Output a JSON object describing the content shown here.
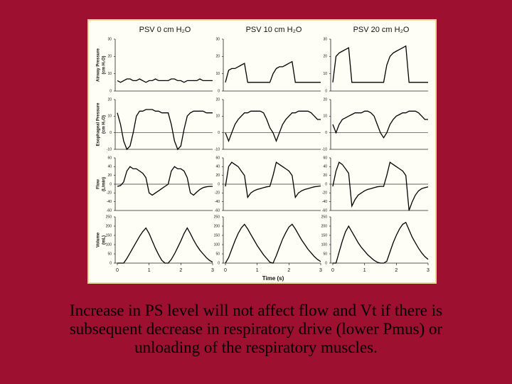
{
  "figure": {
    "column_titles": [
      "PSV 0 cm H₂O",
      "PSV 10 cm H₂O",
      "PSV 20 cm H₂O"
    ],
    "x_label": "Time (s)"
  },
  "caption": [
    "Increase in PS level will not affect flow and Vt if there is",
    "subsequent decrease in respiratory drive (lower Pmus) or",
    "unloading of the respiratory muscles."
  ],
  "chart_data": [
    {
      "type": "line",
      "ylabel": [
        "Airway Pressure",
        "(cm H₂O)"
      ],
      "xlim": [
        0,
        3
      ],
      "ylim": [
        0,
        30
      ],
      "yticks": [
        0,
        10,
        20,
        30
      ],
      "zero_line": false,
      "x": [
        0,
        0.1,
        0.2,
        0.3,
        0.4,
        0.5,
        0.6,
        0.7,
        0.8,
        0.9,
        1,
        1.1,
        1.2,
        1.3,
        1.4,
        1.5,
        1.6,
        1.7,
        1.8,
        1.9,
        2,
        2.1,
        2.2,
        2.3,
        2.4,
        2.5,
        2.6,
        2.7,
        2.8,
        2.9,
        3
      ],
      "values": [
        6,
        5,
        6,
        7,
        7,
        6,
        6,
        7,
        6,
        5,
        6,
        6,
        7,
        6,
        6,
        6,
        6,
        7,
        7,
        6,
        6,
        5,
        6,
        6,
        6,
        6,
        7,
        6,
        6,
        6,
        6
      ]
    },
    {
      "type": "line",
      "xlim": [
        0,
        3
      ],
      "ylim": [
        0,
        30
      ],
      "yticks": [
        0,
        10,
        20,
        30
      ],
      "zero_line": false,
      "x": [
        0,
        0.1,
        0.2,
        0.3,
        0.4,
        0.5,
        0.6,
        0.7,
        0.8,
        0.9,
        1,
        1.1,
        1.2,
        1.3,
        1.4,
        1.5,
        1.6,
        1.7,
        1.8,
        1.9,
        2,
        2.1,
        2.2,
        2.3,
        2.4,
        2.5,
        2.6,
        2.7,
        2.8,
        2.9,
        3
      ],
      "values": [
        5,
        12,
        13,
        13,
        14,
        15,
        16,
        5,
        5,
        5,
        5,
        5,
        5,
        5,
        5,
        10,
        13,
        14,
        14,
        15,
        16,
        17,
        5,
        5,
        5,
        5,
        5,
        5,
        5,
        5,
        5
      ]
    },
    {
      "type": "line",
      "xlim": [
        0,
        3
      ],
      "ylim": [
        0,
        30
      ],
      "yticks": [
        0,
        10,
        20,
        30
      ],
      "zero_line": false,
      "x": [
        0,
        0.1,
        0.2,
        0.3,
        0.4,
        0.5,
        0.6,
        0.7,
        0.8,
        0.9,
        1,
        1.1,
        1.2,
        1.3,
        1.4,
        1.5,
        1.6,
        1.7,
        1.8,
        1.9,
        2,
        2.1,
        2.2,
        2.3,
        2.4,
        2.5,
        2.6,
        2.7,
        2.8,
        2.9,
        3
      ],
      "values": [
        5,
        20,
        22,
        23,
        24,
        25,
        5,
        5,
        5,
        5,
        5,
        5,
        5,
        5,
        5,
        5,
        5,
        15,
        20,
        22,
        23,
        24,
        25,
        26,
        5,
        5,
        5,
        5,
        5,
        5,
        5
      ]
    },
    {
      "type": "line",
      "ylabel": [
        "Esophageal Pressure",
        "(cm H₂O)"
      ],
      "xlim": [
        0,
        3
      ],
      "ylim": [
        -10,
        20
      ],
      "yticks": [
        -10,
        0,
        10,
        20
      ],
      "zero_line": true,
      "x": [
        0,
        0.1,
        0.2,
        0.3,
        0.4,
        0.5,
        0.6,
        0.7,
        0.8,
        0.9,
        1,
        1.1,
        1.2,
        1.3,
        1.4,
        1.5,
        1.6,
        1.7,
        1.8,
        1.9,
        2,
        2.1,
        2.2,
        2.3,
        2.4,
        2.5,
        2.6,
        2.7,
        2.8,
        2.9,
        3
      ],
      "values": [
        12,
        5,
        -5,
        -10,
        -8,
        0,
        10,
        13,
        13,
        14,
        14,
        14,
        13,
        13,
        12,
        12,
        12,
        5,
        -5,
        -10,
        -8,
        2,
        10,
        12,
        13,
        13,
        13,
        13,
        12,
        12,
        12
      ]
    },
    {
      "type": "line",
      "xlim": [
        0,
        3
      ],
      "ylim": [
        -10,
        20
      ],
      "yticks": [
        -10,
        0,
        10,
        20
      ],
      "zero_line": true,
      "x": [
        0,
        0.1,
        0.2,
        0.3,
        0.4,
        0.5,
        0.6,
        0.7,
        0.8,
        0.9,
        1,
        1.1,
        1.2,
        1.3,
        1.4,
        1.5,
        1.6,
        1.7,
        1.8,
        1.9,
        2,
        2.1,
        2.2,
        2.3,
        2.4,
        2.5,
        2.6,
        2.7,
        2.8,
        2.9,
        3
      ],
      "values": [
        0,
        -5,
        0,
        5,
        8,
        10,
        12,
        12,
        13,
        13,
        13,
        13,
        12,
        8,
        3,
        0,
        -5,
        0,
        5,
        8,
        10,
        12,
        12,
        13,
        13,
        13,
        13,
        12,
        10,
        8,
        8
      ]
    },
    {
      "type": "line",
      "xlim": [
        0,
        3
      ],
      "ylim": [
        -10,
        20
      ],
      "yticks": [
        -10,
        0,
        10,
        20
      ],
      "zero_line": true,
      "x": [
        0,
        0.1,
        0.2,
        0.3,
        0.4,
        0.5,
        0.6,
        0.7,
        0.8,
        0.9,
        1,
        1.1,
        1.2,
        1.3,
        1.4,
        1.5,
        1.6,
        1.7,
        1.8,
        1.9,
        2,
        2.1,
        2.2,
        2.3,
        2.4,
        2.5,
        2.6,
        2.7,
        2.8,
        2.9,
        3
      ],
      "values": [
        5,
        0,
        5,
        8,
        9,
        10,
        11,
        12,
        12,
        12,
        13,
        13,
        12,
        10,
        5,
        0,
        -3,
        0,
        5,
        8,
        10,
        11,
        12,
        12,
        13,
        13,
        13,
        12,
        10,
        8,
        8
      ]
    },
    {
      "type": "line",
      "ylabel": [
        "Flow",
        "(L/min)"
      ],
      "xlim": [
        0,
        3
      ],
      "ylim": [
        -60,
        60
      ],
      "yticks": [
        -60,
        -40,
        -20,
        0,
        20,
        40,
        60
      ],
      "zero_line": true,
      "x": [
        0,
        0.1,
        0.2,
        0.3,
        0.4,
        0.5,
        0.6,
        0.7,
        0.8,
        0.9,
        1,
        1.1,
        1.2,
        1.3,
        1.4,
        1.5,
        1.6,
        1.7,
        1.8,
        1.9,
        2,
        2.1,
        2.2,
        2.3,
        2.4,
        2.5,
        2.6,
        2.7,
        2.8,
        2.9,
        3
      ],
      "values": [
        -5,
        -3,
        5,
        30,
        40,
        35,
        35,
        30,
        25,
        15,
        -20,
        -25,
        -20,
        -15,
        -10,
        -5,
        0,
        30,
        40,
        35,
        35,
        30,
        15,
        -20,
        -25,
        -18,
        -12,
        -8,
        -6,
        -5,
        -5
      ]
    },
    {
      "type": "line",
      "xlim": [
        0,
        3
      ],
      "ylim": [
        -60,
        60
      ],
      "yticks": [
        -60,
        -40,
        -20,
        0,
        20,
        40,
        60
      ],
      "zero_line": true,
      "x": [
        0,
        0.1,
        0.2,
        0.3,
        0.4,
        0.5,
        0.6,
        0.7,
        0.8,
        0.9,
        1,
        1.1,
        1.2,
        1.3,
        1.4,
        1.5,
        1.6,
        1.7,
        1.8,
        1.9,
        2,
        2.1,
        2.2,
        2.3,
        2.4,
        2.5,
        2.6,
        2.7,
        2.8,
        2.9,
        3
      ],
      "values": [
        -5,
        40,
        50,
        45,
        40,
        30,
        20,
        -30,
        -20,
        -15,
        -12,
        -10,
        -8,
        -6,
        -5,
        20,
        50,
        45,
        40,
        35,
        30,
        20,
        -30,
        -20,
        -15,
        -12,
        -10,
        -8,
        -6,
        -5,
        -4
      ]
    },
    {
      "type": "line",
      "xlim": [
        0,
        3
      ],
      "ylim": [
        -60,
        60
      ],
      "yticks": [
        -60,
        -40,
        -20,
        0,
        20,
        40,
        60
      ],
      "zero_line": true,
      "x": [
        0,
        0.1,
        0.2,
        0.3,
        0.4,
        0.5,
        0.6,
        0.7,
        0.8,
        0.9,
        1,
        1.1,
        1.2,
        1.3,
        1.4,
        1.5,
        1.6,
        1.7,
        1.8,
        1.9,
        2,
        2.1,
        2.2,
        2.3,
        2.4,
        2.5,
        2.6,
        2.7,
        2.8,
        2.9,
        3
      ],
      "values": [
        -5,
        30,
        50,
        45,
        35,
        25,
        -50,
        -35,
        -25,
        -20,
        -15,
        -12,
        -10,
        -8,
        -6,
        -5,
        -5,
        20,
        50,
        45,
        40,
        35,
        30,
        20,
        -60,
        -40,
        -25,
        -15,
        -10,
        -8,
        -6
      ]
    },
    {
      "type": "line",
      "ylabel": [
        "Volume",
        "(mL)"
      ],
      "xlim": [
        0,
        3
      ],
      "xticks": [
        0,
        1,
        2,
        3
      ],
      "ylim": [
        0,
        250
      ],
      "yticks": [
        0,
        50,
        100,
        150,
        200,
        250
      ],
      "zero_line": false,
      "x": [
        0,
        0.1,
        0.2,
        0.3,
        0.4,
        0.5,
        0.6,
        0.7,
        0.8,
        0.9,
        1,
        1.1,
        1.2,
        1.3,
        1.4,
        1.5,
        1.6,
        1.7,
        1.8,
        1.9,
        2,
        2.1,
        2.2,
        2.3,
        2.4,
        2.5,
        2.6,
        2.7,
        2.8,
        2.9,
        3
      ],
      "values": [
        0,
        0,
        0,
        25,
        55,
        85,
        115,
        145,
        170,
        190,
        160,
        120,
        80,
        45,
        15,
        0,
        0,
        20,
        50,
        85,
        120,
        160,
        190,
        160,
        125,
        95,
        70,
        50,
        30,
        15,
        5
      ]
    },
    {
      "type": "line",
      "xlim": [
        0,
        3
      ],
      "xticks": [
        0,
        1,
        2,
        3
      ],
      "ylim": [
        0,
        250
      ],
      "yticks": [
        0,
        50,
        100,
        150,
        200,
        250
      ],
      "zero_line": false,
      "x": [
        0,
        0.1,
        0.2,
        0.3,
        0.4,
        0.5,
        0.6,
        0.7,
        0.8,
        0.9,
        1,
        1.1,
        1.2,
        1.3,
        1.4,
        1.5,
        1.6,
        1.7,
        1.8,
        1.9,
        2,
        2.1,
        2.2,
        2.3,
        2.4,
        2.5,
        2.6,
        2.7,
        2.8,
        2.9,
        3
      ],
      "values": [
        0,
        30,
        75,
        120,
        160,
        190,
        210,
        185,
        155,
        125,
        95,
        70,
        45,
        25,
        5,
        0,
        40,
        85,
        130,
        165,
        195,
        210,
        185,
        155,
        125,
        100,
        75,
        55,
        35,
        20,
        8
      ]
    },
    {
      "type": "line",
      "xlim": [
        0,
        3
      ],
      "xticks": [
        0,
        1,
        2,
        3
      ],
      "ylim": [
        0,
        250
      ],
      "yticks": [
        0,
        50,
        100,
        150,
        200,
        250
      ],
      "zero_line": false,
      "x": [
        0,
        0.1,
        0.2,
        0.3,
        0.4,
        0.5,
        0.6,
        0.7,
        0.8,
        0.9,
        1,
        1.1,
        1.2,
        1.3,
        1.4,
        1.5,
        1.6,
        1.7,
        1.8,
        1.9,
        2,
        2.1,
        2.2,
        2.3,
        2.4,
        2.5,
        2.6,
        2.7,
        2.8,
        2.9,
        3
      ],
      "values": [
        0,
        0,
        60,
        120,
        170,
        200,
        170,
        140,
        110,
        85,
        65,
        45,
        30,
        15,
        5,
        0,
        0,
        10,
        60,
        110,
        150,
        185,
        210,
        220,
        180,
        140,
        110,
        80,
        55,
        35,
        20
      ]
    }
  ]
}
